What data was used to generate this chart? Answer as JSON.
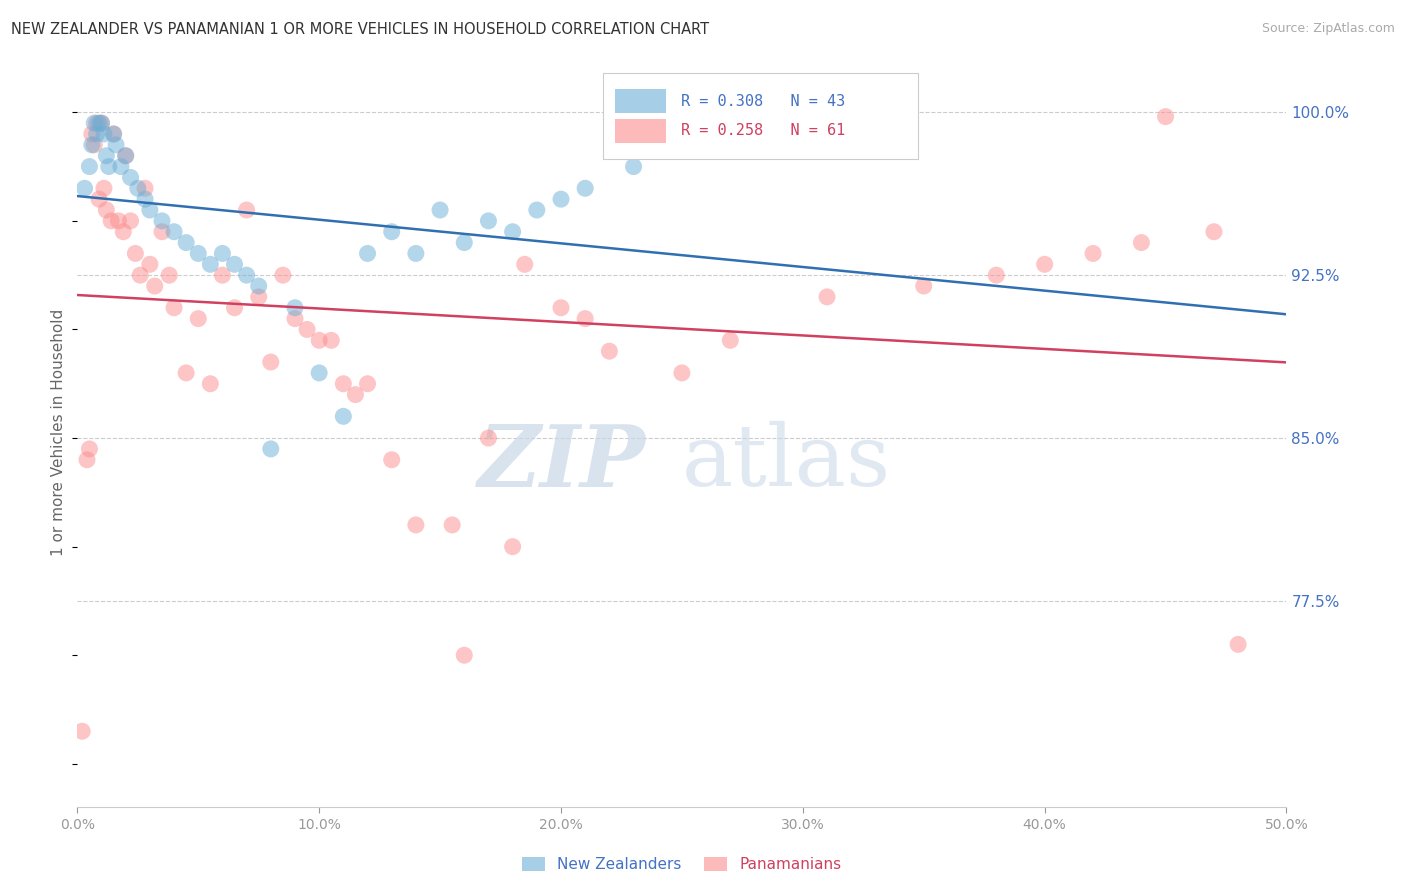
{
  "title": "NEW ZEALANDER VS PANAMANIAN 1 OR MORE VEHICLES IN HOUSEHOLD CORRELATION CHART",
  "source": "Source: ZipAtlas.com",
  "ylabel": "1 or more Vehicles in Household",
  "xmin": 0.0,
  "xmax": 50.0,
  "ymin": 68.0,
  "ymax": 102.5,
  "yticks": [
    77.5,
    85.0,
    92.5,
    100.0
  ],
  "ytick_labels": [
    "77.5%",
    "85.0%",
    "92.5%",
    "100.0%"
  ],
  "xticks": [
    0,
    10,
    20,
    30,
    40,
    50
  ],
  "xtick_labels": [
    "0.0%",
    "10.0%",
    "20.0%",
    "30.0%",
    "40.0%",
    "50.0%"
  ],
  "r_nz": 0.308,
  "n_nz": 43,
  "r_pan": 0.258,
  "n_pan": 61,
  "color_nz": "#6baed6",
  "color_pan": "#fc8d8d",
  "line_color_nz": "#3070b0",
  "line_color_pan": "#d04060",
  "legend_label_nz": "New Zealanders",
  "legend_label_pan": "Panamanians",
  "watermark_zip": "ZIP",
  "watermark_atlas": "atlas",
  "nz_x": [
    0.3,
    0.5,
    0.6,
    0.7,
    0.8,
    0.9,
    1.0,
    1.1,
    1.2,
    1.3,
    1.5,
    1.6,
    1.8,
    2.0,
    2.2,
    2.5,
    2.8,
    3.0,
    3.5,
    4.0,
    4.5,
    5.0,
    5.5,
    6.0,
    6.5,
    7.0,
    7.5,
    8.0,
    9.0,
    10.0,
    11.0,
    12.0,
    13.0,
    14.0,
    15.0,
    16.0,
    17.0,
    18.0,
    19.0,
    20.0,
    21.0,
    23.0,
    26.0
  ],
  "nz_y": [
    96.5,
    97.5,
    98.5,
    99.5,
    99.0,
    99.5,
    99.5,
    99.0,
    98.0,
    97.5,
    99.0,
    98.5,
    97.5,
    98.0,
    97.0,
    96.5,
    96.0,
    95.5,
    95.0,
    94.5,
    94.0,
    93.5,
    93.0,
    93.5,
    93.0,
    92.5,
    92.0,
    84.5,
    91.0,
    88.0,
    86.0,
    93.5,
    94.5,
    93.5,
    95.5,
    94.0,
    95.0,
    94.5,
    95.5,
    96.0,
    96.5,
    97.5,
    99.5
  ],
  "pan_x": [
    0.2,
    0.4,
    0.5,
    0.6,
    0.7,
    0.8,
    0.9,
    1.0,
    1.1,
    1.2,
    1.4,
    1.5,
    1.7,
    1.9,
    2.0,
    2.2,
    2.4,
    2.6,
    2.8,
    3.0,
    3.2,
    3.5,
    3.8,
    4.0,
    4.5,
    5.0,
    5.5,
    6.0,
    6.5,
    7.0,
    7.5,
    8.0,
    8.5,
    9.0,
    9.5,
    10.0,
    10.5,
    11.0,
    11.5,
    12.0,
    13.0,
    14.0,
    15.5,
    16.0,
    17.0,
    18.0,
    18.5,
    20.0,
    21.0,
    22.0,
    25.0,
    27.0,
    31.0,
    35.0,
    38.0,
    40.0,
    42.0,
    44.0,
    45.0,
    47.0,
    48.0
  ],
  "pan_y": [
    71.5,
    84.0,
    84.5,
    99.0,
    98.5,
    99.5,
    96.0,
    99.5,
    96.5,
    95.5,
    95.0,
    99.0,
    95.0,
    94.5,
    98.0,
    95.0,
    93.5,
    92.5,
    96.5,
    93.0,
    92.0,
    94.5,
    92.5,
    91.0,
    88.0,
    90.5,
    87.5,
    92.5,
    91.0,
    95.5,
    91.5,
    88.5,
    92.5,
    90.5,
    90.0,
    89.5,
    89.5,
    87.5,
    87.0,
    87.5,
    84.0,
    81.0,
    81.0,
    75.0,
    85.0,
    80.0,
    93.0,
    91.0,
    90.5,
    89.0,
    88.0,
    89.5,
    91.5,
    92.0,
    92.5,
    93.0,
    93.5,
    94.0,
    99.8,
    94.5,
    75.5
  ]
}
